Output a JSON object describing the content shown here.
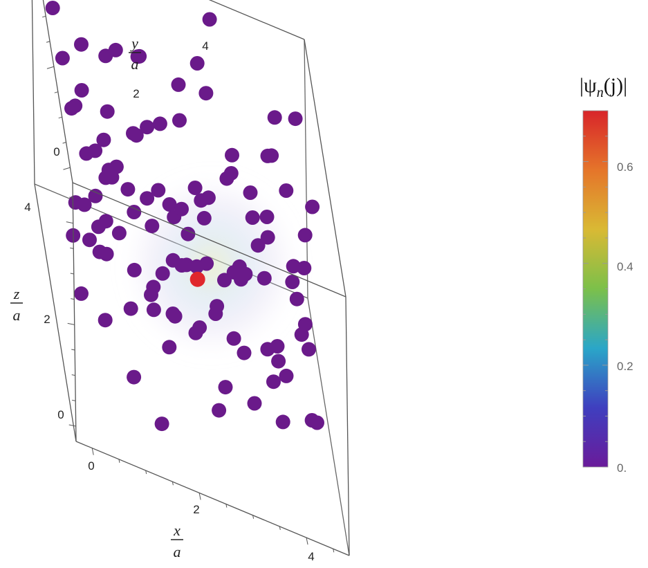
{
  "chart_data": {
    "type": "scatter",
    "dimensions": 3,
    "axes": {
      "x": {
        "label_num": "x",
        "label_den": "a",
        "ticks": [
          "0",
          "2",
          "4"
        ]
      },
      "y": {
        "label_num": "y",
        "label_den": "a",
        "ticks": [
          "0",
          "2",
          "4"
        ]
      },
      "z": {
        "label_num": "z",
        "label_den": "a",
        "ticks": [
          "0",
          "2",
          "4"
        ]
      }
    },
    "colorbar": {
      "title": "|ψn(j)|",
      "title_parts": {
        "open": "|ψ",
        "sub": "n",
        "close": "(j)|"
      },
      "ticks": [
        "0.",
        "0.2",
        "0.4",
        "0.6"
      ],
      "range": [
        0,
        0.7
      ],
      "colors": [
        "#6a1b9a",
        "#3f3fbf",
        "#2aa6c8",
        "#7cc04a",
        "#d9b934",
        "#e5752a",
        "#d8252a"
      ]
    },
    "point_color": "#6a1a8a",
    "peak_color": "#e0272c",
    "peak_point": {
      "x": 2.4,
      "y": 2.4,
      "z": 1.4,
      "value": 0.7
    },
    "points": [
      [
        0.0,
        4.2,
        3.9
      ],
      [
        0.0,
        0.3,
        3.9
      ],
      [
        0.1,
        2.2,
        2.1
      ],
      [
        0.2,
        1.1,
        2.5
      ],
      [
        0.3,
        3.5,
        2.8
      ],
      [
        0.3,
        0.6,
        3.3
      ],
      [
        0.4,
        2.8,
        2.6
      ],
      [
        0.5,
        1.0,
        3.1
      ],
      [
        0.5,
        4.0,
        3.6
      ],
      [
        0.6,
        1.7,
        1.8
      ],
      [
        0.7,
        2.6,
        3.2
      ],
      [
        0.8,
        3.1,
        2.0
      ],
      [
        0.9,
        0.4,
        0.8
      ],
      [
        1.0,
        3.7,
        1.5
      ],
      [
        1.0,
        1.4,
        1.2
      ],
      [
        1.1,
        2.3,
        2.7
      ],
      [
        1.2,
        4.4,
        3.4
      ],
      [
        1.3,
        0.8,
        2.2
      ],
      [
        1.4,
        3.2,
        3.0
      ],
      [
        1.5,
        1.9,
        0.9
      ],
      [
        1.6,
        2.7,
        1.8
      ],
      [
        1.7,
        3.9,
        2.6
      ],
      [
        1.8,
        1.2,
        1.6
      ],
      [
        1.9,
        2.2,
        0.7
      ],
      [
        2.0,
        4.3,
        2.4
      ],
      [
        2.1,
        0.6,
        2.0
      ],
      [
        2.2,
        3.0,
        2.1
      ],
      [
        2.3,
        1.5,
        1.3
      ],
      [
        2.4,
        3.6,
        1.1
      ],
      [
        2.5,
        2.5,
        2.9
      ],
      [
        2.6,
        4.0,
        1.7
      ],
      [
        2.7,
        1.0,
        0.8
      ],
      [
        2.8,
        2.9,
        0.4
      ],
      [
        2.9,
        4.5,
        3.2
      ],
      [
        3.0,
        1.8,
        2.4
      ],
      [
        3.1,
        3.3,
        2.8
      ],
      [
        3.2,
        0.7,
        1.0
      ],
      [
        3.3,
        2.4,
        1.9
      ],
      [
        3.4,
        3.9,
        0.6
      ],
      [
        3.5,
        1.3,
        3.0
      ],
      [
        3.6,
        2.8,
        2.2
      ],
      [
        3.7,
        4.2,
        1.4
      ],
      [
        3.8,
        1.7,
        1.1
      ],
      [
        3.9,
        3.5,
        3.4
      ],
      [
        4.0,
        2.1,
        0.5
      ],
      [
        4.1,
        4.4,
        2.6
      ],
      [
        4.2,
        0.9,
        2.8
      ],
      [
        4.3,
        3.1,
        1.8
      ],
      [
        4.4,
        1.6,
        0.3
      ],
      [
        4.5,
        4.0,
        3.9
      ],
      [
        0.2,
        3.3,
        0.4
      ],
      [
        0.6,
        2.0,
        0.2
      ],
      [
        1.2,
        4.5,
        1.0
      ],
      [
        1.8,
        0.2,
        3.6
      ],
      [
        2.2,
        4.6,
        0.6
      ],
      [
        2.9,
        0.3,
        3.8
      ],
      [
        3.4,
        4.7,
        2.0
      ],
      [
        3.9,
        0.4,
        4.0
      ],
      [
        4.6,
        2.6,
        3.6
      ],
      [
        4.6,
        3.8,
        1.2
      ],
      [
        0.9,
        4.6,
        4.3
      ],
      [
        1.5,
        3.6,
        4.2
      ],
      [
        2.1,
        2.4,
        4.4
      ],
      [
        2.7,
        4.2,
        4.0
      ],
      [
        3.3,
        1.6,
        4.3
      ],
      [
        4.0,
        3.2,
        4.5
      ],
      [
        0.3,
        0.9,
        4.5
      ],
      [
        1.1,
        1.5,
        4.6
      ],
      [
        0.8,
        2.9,
        4.6
      ],
      [
        2.4,
        0.8,
        4.6
      ],
      [
        3.6,
        0.4,
        2.6
      ],
      [
        4.3,
        0.2,
        1.6
      ],
      [
        1.4,
        0.3,
        0.2
      ],
      [
        2.6,
        1.2,
        0.1
      ],
      [
        3.8,
        2.4,
        0.0
      ],
      [
        0.4,
        4.7,
        1.6
      ],
      [
        1.0,
        4.2,
        2.3
      ],
      [
        1.7,
        4.8,
        3.1
      ],
      [
        2.3,
        3.9,
        3.7
      ],
      [
        3.0,
        4.6,
        4.6
      ],
      [
        0.7,
        3.8,
        0.9
      ],
      [
        1.3,
        3.0,
        0.5
      ],
      [
        1.9,
        3.5,
        0.2
      ],
      [
        2.5,
        3.2,
        0.9
      ],
      [
        3.1,
        3.8,
        0.3
      ],
      [
        0.1,
        1.6,
        0.9
      ],
      [
        0.5,
        1.9,
        1.6
      ],
      [
        1.6,
        0.6,
        1.5
      ],
      [
        2.0,
        1.0,
        2.9
      ],
      [
        2.8,
        0.5,
        2.3
      ],
      [
        3.5,
        1.0,
        1.9
      ],
      [
        4.2,
        1.4,
        2.1
      ],
      [
        4.5,
        2.9,
        2.7
      ],
      [
        0.3,
        2.6,
        4.0
      ],
      [
        1.0,
        0.8,
        3.7
      ],
      [
        1.6,
        1.8,
        3.4
      ],
      [
        2.4,
        1.4,
        3.6
      ],
      [
        3.1,
        2.7,
        3.5
      ],
      [
        3.7,
        2.2,
        3.0
      ],
      [
        4.1,
        2.5,
        3.8
      ],
      [
        0.9,
        3.4,
        1.9
      ],
      [
        1.5,
        2.6,
        2.4
      ],
      [
        2.1,
        3.3,
        1.6
      ],
      [
        2.7,
        2.0,
        1.4
      ],
      [
        3.3,
        3.0,
        1.2
      ],
      [
        3.9,
        3.7,
        2.0
      ],
      [
        4.4,
        3.4,
        0.9
      ],
      [
        0.2,
        4.4,
        2.8
      ],
      [
        0.8,
        1.4,
        2.6
      ],
      [
        1.4,
        1.2,
        2.0
      ],
      [
        2.0,
        2.8,
        1.2
      ],
      [
        2.6,
        2.6,
        1.6
      ],
      [
        3.2,
        2.0,
        0.7
      ],
      [
        3.8,
        1.2,
        0.4
      ],
      [
        4.4,
        1.9,
        1.4
      ]
    ]
  }
}
